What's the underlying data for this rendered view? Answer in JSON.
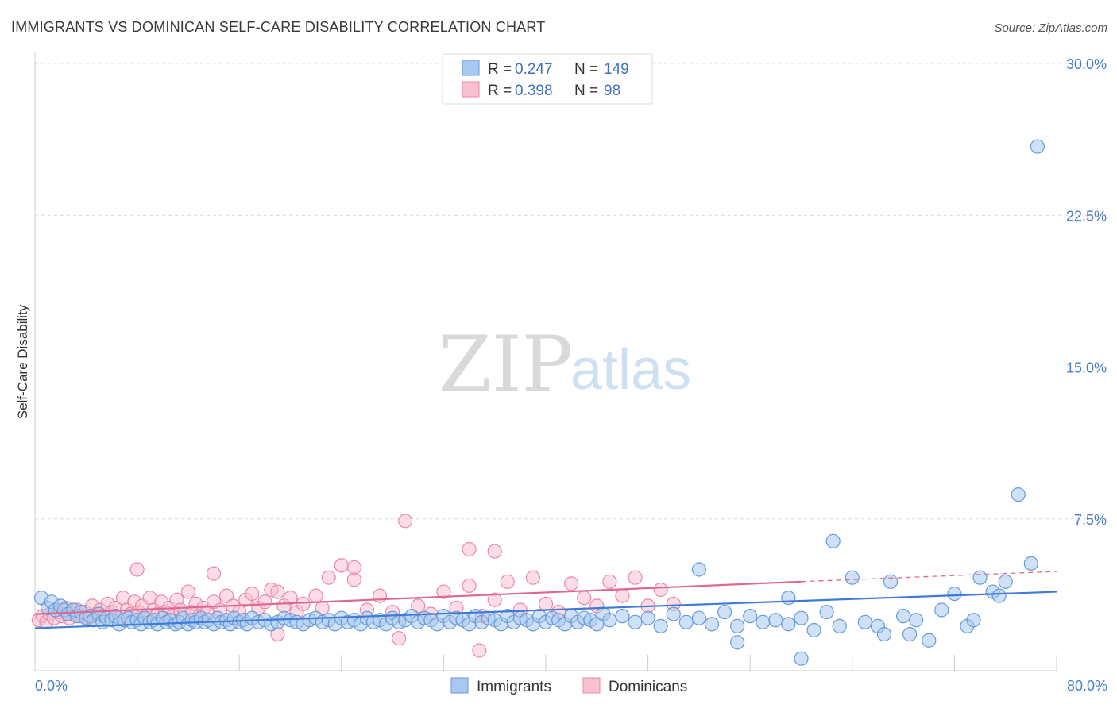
{
  "header": {
    "title": "IMMIGRANTS VS DOMINICAN SELF-CARE DISABILITY CORRELATION CHART",
    "source": "Source: ZipAtlas.com"
  },
  "watermark": {
    "zip": "ZIP",
    "atlas": "atlas"
  },
  "legend_box": {
    "rows": [
      {
        "r_label": "R = ",
        "r_value": "0.247",
        "n_label": "N = ",
        "n_value": "149",
        "color": "#a8c8f0",
        "stroke": "#6a9ad8"
      },
      {
        "r_label": "R = ",
        "r_value": "0.398",
        "n_label": "N = ",
        "n_value": " 98",
        "color": "#f9c0d0",
        "stroke": "#e88aa8"
      }
    ]
  },
  "bottom_legend": [
    {
      "label": "Immigrants",
      "color": "#a8c8f0",
      "stroke": "#6a9ad8"
    },
    {
      "label": "Dominicans",
      "color": "#f9c0d0",
      "stroke": "#e88aa8"
    }
  ],
  "chart_data": {
    "type": "scatter",
    "title": "IMMIGRANTS VS DOMINICAN SELF-CARE DISABILITY CORRELATION CHART",
    "ylabel": "Self-Care Disability",
    "xlim": [
      0,
      80
    ],
    "ylim": [
      0,
      30
    ],
    "y_ticks": [
      {
        "value": 7.5,
        "label": "7.5%"
      },
      {
        "value": 15,
        "label": "15.0%"
      },
      {
        "value": 22.5,
        "label": "22.5%"
      },
      {
        "value": 30,
        "label": "30.0%"
      }
    ],
    "x_tick_labels": [
      {
        "value": 0,
        "label": "0.0%"
      },
      {
        "value": 80,
        "label": "80.0%"
      }
    ],
    "grid": true,
    "legend_placement": "top-center",
    "series": [
      {
        "name": "Immigrants",
        "color": "#a8c8f0",
        "stroke": "#6a9ad8",
        "line_color": "#3d7bd6",
        "trend": {
          "x0": 0,
          "y0": 2.1,
          "x1": 80,
          "y1": 3.9
        },
        "points": [
          [
            0.5,
            3.6
          ],
          [
            1.0,
            3.1
          ],
          [
            1.3,
            3.4
          ],
          [
            1.6,
            3.0
          ],
          [
            2.0,
            3.2
          ],
          [
            2.3,
            3.0
          ],
          [
            2.6,
            2.8
          ],
          [
            3.0,
            3.0
          ],
          [
            3.3,
            2.7
          ],
          [
            3.6,
            2.9
          ],
          [
            4.0,
            2.6
          ],
          [
            4.3,
            2.7
          ],
          [
            4.6,
            2.5
          ],
          [
            5.0,
            2.8
          ],
          [
            5.3,
            2.4
          ],
          [
            5.6,
            2.6
          ],
          [
            6.0,
            2.5
          ],
          [
            6.3,
            2.7
          ],
          [
            6.6,
            2.3
          ],
          [
            7.0,
            2.5
          ],
          [
            7.3,
            2.6
          ],
          [
            7.6,
            2.4
          ],
          [
            8.0,
            2.5
          ],
          [
            8.3,
            2.3
          ],
          [
            8.6,
            2.6
          ],
          [
            9.0,
            2.4
          ],
          [
            9.3,
            2.5
          ],
          [
            9.6,
            2.3
          ],
          [
            10.0,
            2.6
          ],
          [
            10.3,
            2.4
          ],
          [
            10.6,
            2.5
          ],
          [
            11.0,
            2.3
          ],
          [
            11.3,
            2.4
          ],
          [
            11.6,
            2.6
          ],
          [
            12.0,
            2.3
          ],
          [
            12.3,
            2.5
          ],
          [
            12.6,
            2.4
          ],
          [
            13.0,
            2.6
          ],
          [
            13.3,
            2.4
          ],
          [
            13.6,
            2.5
          ],
          [
            14.0,
            2.3
          ],
          [
            14.3,
            2.6
          ],
          [
            14.6,
            2.4
          ],
          [
            15.0,
            2.5
          ],
          [
            15.3,
            2.3
          ],
          [
            15.6,
            2.6
          ],
          [
            16.0,
            2.4
          ],
          [
            16.3,
            2.5
          ],
          [
            16.6,
            2.3
          ],
          [
            17.0,
            2.6
          ],
          [
            17.5,
            2.4
          ],
          [
            18.0,
            2.5
          ],
          [
            18.5,
            2.3
          ],
          [
            19.0,
            2.4
          ],
          [
            19.5,
            2.6
          ],
          [
            20.0,
            2.5
          ],
          [
            20.5,
            2.4
          ],
          [
            21.0,
            2.3
          ],
          [
            21.5,
            2.5
          ],
          [
            22.0,
            2.6
          ],
          [
            22.5,
            2.4
          ],
          [
            23.0,
            2.5
          ],
          [
            23.5,
            2.3
          ],
          [
            24.0,
            2.6
          ],
          [
            24.5,
            2.4
          ],
          [
            25.0,
            2.5
          ],
          [
            25.5,
            2.3
          ],
          [
            26.0,
            2.6
          ],
          [
            26.5,
            2.4
          ],
          [
            27.0,
            2.5
          ],
          [
            27.5,
            2.3
          ],
          [
            28.0,
            2.6
          ],
          [
            28.5,
            2.4
          ],
          [
            29.0,
            2.5
          ],
          [
            29.5,
            2.7
          ],
          [
            30.0,
            2.4
          ],
          [
            30.5,
            2.6
          ],
          [
            31.0,
            2.5
          ],
          [
            31.5,
            2.3
          ],
          [
            32.0,
            2.7
          ],
          [
            32.5,
            2.4
          ],
          [
            33.0,
            2.6
          ],
          [
            33.5,
            2.5
          ],
          [
            34.0,
            2.3
          ],
          [
            34.5,
            2.7
          ],
          [
            35.0,
            2.4
          ],
          [
            35.5,
            2.6
          ],
          [
            36.0,
            2.5
          ],
          [
            36.5,
            2.3
          ],
          [
            37.0,
            2.7
          ],
          [
            37.5,
            2.4
          ],
          [
            38.0,
            2.6
          ],
          [
            38.5,
            2.5
          ],
          [
            39.0,
            2.3
          ],
          [
            39.5,
            2.7
          ],
          [
            40.0,
            2.4
          ],
          [
            40.5,
            2.6
          ],
          [
            41.0,
            2.5
          ],
          [
            41.5,
            2.3
          ],
          [
            42.0,
            2.7
          ],
          [
            42.5,
            2.4
          ],
          [
            43.0,
            2.6
          ],
          [
            43.5,
            2.5
          ],
          [
            44.0,
            2.3
          ],
          [
            44.5,
            2.8
          ],
          [
            45.0,
            2.5
          ],
          [
            46.0,
            2.7
          ],
          [
            47.0,
            2.4
          ],
          [
            48.0,
            2.6
          ],
          [
            49.0,
            2.2
          ],
          [
            50.0,
            2.8
          ],
          [
            51.0,
            2.4
          ],
          [
            52.0,
            2.6
          ],
          [
            53.0,
            2.3
          ],
          [
            54.0,
            2.9
          ],
          [
            55.0,
            2.2
          ],
          [
            56.0,
            2.7
          ],
          [
            57.0,
            2.4
          ],
          [
            58.0,
            2.5
          ],
          [
            59.0,
            2.3
          ],
          [
            60.0,
            2.6
          ],
          [
            61.0,
            2.0
          ],
          [
            62.0,
            2.9
          ],
          [
            62.5,
            6.4
          ],
          [
            63.0,
            2.2
          ],
          [
            64.0,
            4.6
          ],
          [
            65.0,
            2.4
          ],
          [
            66.0,
            2.2
          ],
          [
            67.0,
            4.4
          ],
          [
            68.0,
            2.7
          ],
          [
            69.0,
            2.5
          ],
          [
            70.0,
            1.5
          ],
          [
            71.0,
            3.0
          ],
          [
            72.0,
            3.8
          ],
          [
            73.0,
            2.2
          ],
          [
            74.0,
            4.6
          ],
          [
            75.0,
            3.9
          ],
          [
            75.5,
            3.7
          ],
          [
            76.0,
            4.4
          ],
          [
            77.0,
            8.7
          ],
          [
            78.0,
            5.3
          ],
          [
            78.5,
            25.9
          ],
          [
            55.0,
            1.4
          ],
          [
            60.0,
            0.6
          ],
          [
            52.0,
            5.0
          ],
          [
            59.0,
            3.6
          ],
          [
            66.5,
            1.8
          ],
          [
            73.5,
            2.5
          ],
          [
            68.5,
            1.8
          ]
        ]
      },
      {
        "name": "Dominicans",
        "color": "#f9c0d0",
        "stroke": "#e88aa8",
        "line_color": "#e0688f",
        "trend": {
          "x0": 0,
          "y0": 2.8,
          "x1": 60,
          "y1": 4.4
        },
        "trend_dashed": {
          "x0": 60,
          "y0": 4.4,
          "x1": 80,
          "y1": 4.9
        },
        "points": [
          [
            0.3,
            2.5
          ],
          [
            0.6,
            2.7
          ],
          [
            0.9,
            2.4
          ],
          [
            1.2,
            2.8
          ],
          [
            1.5,
            2.6
          ],
          [
            1.8,
            2.9
          ],
          [
            2.1,
            2.7
          ],
          [
            2.4,
            3.1
          ],
          [
            2.7,
            2.6
          ],
          [
            3.0,
            2.8
          ],
          [
            3.3,
            3.0
          ],
          [
            3.6,
            2.7
          ],
          [
            3.9,
            2.9
          ],
          [
            4.2,
            2.6
          ],
          [
            4.5,
            3.2
          ],
          [
            4.8,
            2.8
          ],
          [
            5.1,
            3.0
          ],
          [
            5.4,
            2.7
          ],
          [
            5.7,
            3.3
          ],
          [
            6.0,
            2.9
          ],
          [
            6.3,
            3.1
          ],
          [
            6.6,
            2.6
          ],
          [
            6.9,
            3.6
          ],
          [
            7.2,
            3.0
          ],
          [
            7.5,
            2.8
          ],
          [
            7.8,
            3.4
          ],
          [
            8.1,
            2.9
          ],
          [
            8.4,
            3.2
          ],
          [
            8.7,
            2.7
          ],
          [
            9.0,
            3.6
          ],
          [
            9.3,
            3.0
          ],
          [
            9.6,
            2.8
          ],
          [
            9.9,
            3.4
          ],
          [
            10.2,
            2.9
          ],
          [
            10.5,
            3.1
          ],
          [
            10.8,
            2.7
          ],
          [
            11.1,
            3.5
          ],
          [
            11.4,
            3.0
          ],
          [
            11.7,
            2.8
          ],
          [
            12.0,
            3.9
          ],
          [
            12.3,
            2.9
          ],
          [
            12.6,
            3.3
          ],
          [
            12.9,
            2.7
          ],
          [
            13.2,
            3.1
          ],
          [
            13.5,
            2.9
          ],
          [
            14.0,
            3.4
          ],
          [
            14.5,
            3.0
          ],
          [
            15.0,
            3.7
          ],
          [
            15.5,
            3.2
          ],
          [
            16.0,
            2.9
          ],
          [
            16.5,
            3.5
          ],
          [
            17.0,
            3.8
          ],
          [
            17.5,
            3.1
          ],
          [
            18.0,
            3.4
          ],
          [
            18.5,
            4.0
          ],
          [
            19.0,
            3.9
          ],
          [
            19.5,
            3.2
          ],
          [
            20.0,
            3.6
          ],
          [
            20.5,
            2.9
          ],
          [
            21.0,
            3.3
          ],
          [
            22.0,
            3.7
          ],
          [
            22.5,
            3.1
          ],
          [
            23.0,
            4.6
          ],
          [
            24.0,
            5.2
          ],
          [
            25.0,
            4.5
          ],
          [
            26.0,
            3.0
          ],
          [
            27.0,
            3.7
          ],
          [
            28.0,
            2.9
          ],
          [
            29.0,
            7.4
          ],
          [
            30.0,
            3.2
          ],
          [
            31.0,
            2.8
          ],
          [
            32.0,
            3.9
          ],
          [
            33.0,
            3.1
          ],
          [
            34.0,
            4.2
          ],
          [
            35.0,
            2.7
          ],
          [
            36.0,
            3.5
          ],
          [
            37.0,
            4.4
          ],
          [
            38.0,
            3.0
          ],
          [
            39.0,
            4.6
          ],
          [
            40.0,
            3.3
          ],
          [
            41.0,
            2.9
          ],
          [
            42.0,
            4.3
          ],
          [
            43.0,
            3.6
          ],
          [
            44.0,
            3.2
          ],
          [
            45.0,
            4.4
          ],
          [
            46.0,
            3.7
          ],
          [
            47.0,
            4.6
          ],
          [
            48.0,
            3.2
          ],
          [
            49.0,
            4.0
          ],
          [
            50.0,
            3.3
          ],
          [
            8.0,
            5.0
          ],
          [
            14.0,
            4.8
          ],
          [
            25.0,
            5.1
          ],
          [
            34.0,
            6.0
          ],
          [
            36.0,
            5.9
          ],
          [
            34.8,
            1.0
          ],
          [
            19.0,
            1.8
          ],
          [
            28.5,
            1.6
          ]
        ]
      }
    ]
  }
}
